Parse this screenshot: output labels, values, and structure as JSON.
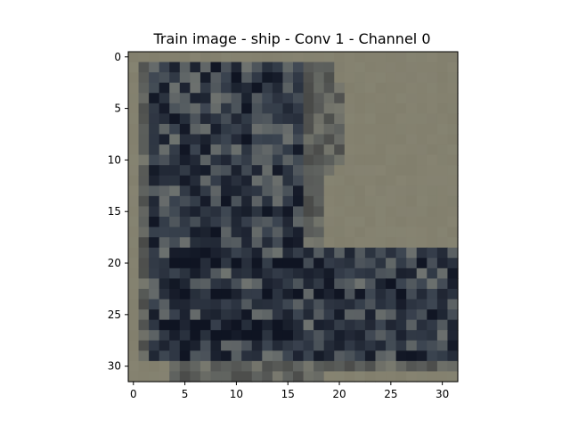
{
  "title": "Train image - ship - Conv 1 - Channel 0",
  "x_ticks": [
    "0",
    "5",
    "10",
    "15",
    "20",
    "25",
    "30"
  ],
  "y_ticks": [
    "0",
    "5",
    "10",
    "15",
    "20",
    "25",
    "30"
  ],
  "image": {
    "rows": 32,
    "cols": 32,
    "background_color": "#827f6d",
    "dark_color": "#0f1422",
    "mid_color": "#3b4450",
    "light_color": "#9a9a8a"
  }
}
